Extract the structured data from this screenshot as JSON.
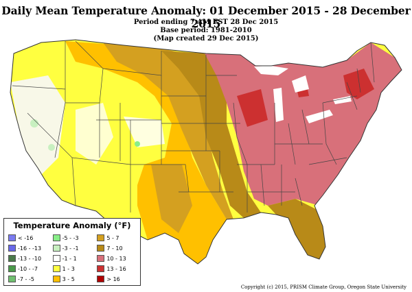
{
  "title": "Daily Mean Temperature Anomaly: 01 December 2015 - 28 December 2015",
  "subtitle_lines": [
    "Period ending 7 AM EST 28 Dec 2015",
    "Base period: 1981-2010",
    "(Map created 29 Dec 2015)"
  ],
  "legend": {
    "title": "Temperature Anomaly (°F)",
    "items": [
      {
        "label": "< -16",
        "color": "#7b7bf0"
      },
      {
        "label": "-5 - -3",
        "color": "#88ee88"
      },
      {
        "label": "5 - 7",
        "color": "#d4a020"
      },
      {
        "label": "-16 - -13",
        "color": "#6868e8"
      },
      {
        "label": "-3 - -1",
        "color": "#c8f0c0"
      },
      {
        "label": "7 - 10",
        "color": "#b88a18"
      },
      {
        "label": "-13 - -10",
        "color": "#4a7a4a"
      },
      {
        "label": "-1 - 1",
        "color": "#ffffff"
      },
      {
        "label": "10 - 13",
        "color": "#d8707a"
      },
      {
        "label": "-10 - -7",
        "color": "#4a9a4a"
      },
      {
        "label": "1 - 3",
        "color": "#ffff40"
      },
      {
        "label": "13 - 16",
        "color": "#cc3030"
      },
      {
        "label": "-7 - -5",
        "color": "#70c070"
      },
      {
        "label": "3 - 5",
        "color": "#ffc000"
      },
      {
        "label": "> 16",
        "color": "#b00000"
      }
    ]
  },
  "copyright": "Copyright (c) 2015, PRISM Climate Group, Oregon State University"
}
